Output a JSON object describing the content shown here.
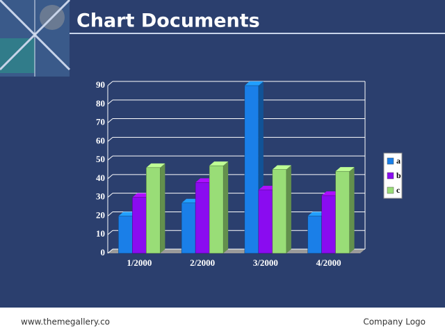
{
  "chart_data": {
    "type": "bar3d",
    "title": "Chart Documents",
    "categories": [
      "1/2000",
      "2/2000",
      "3/2000",
      "4/2000"
    ],
    "series": [
      {
        "name": "a",
        "color": "#1a7fe8",
        "values": [
          20,
          27,
          90,
          20
        ]
      },
      {
        "name": "b",
        "color": "#8a0cf0",
        "values": [
          30,
          38,
          34,
          31
        ]
      },
      {
        "name": "c",
        "color": "#99dd77",
        "values": [
          46,
          47,
          45,
          44
        ]
      }
    ],
    "ylim": [
      0,
      90
    ],
    "yticks": [
      0,
      10,
      20,
      30,
      40,
      50,
      60,
      70,
      80,
      90
    ],
    "grid": true,
    "legend": "right"
  },
  "footer": {
    "left": "www.themegallery.co",
    "right": "Company Logo"
  }
}
